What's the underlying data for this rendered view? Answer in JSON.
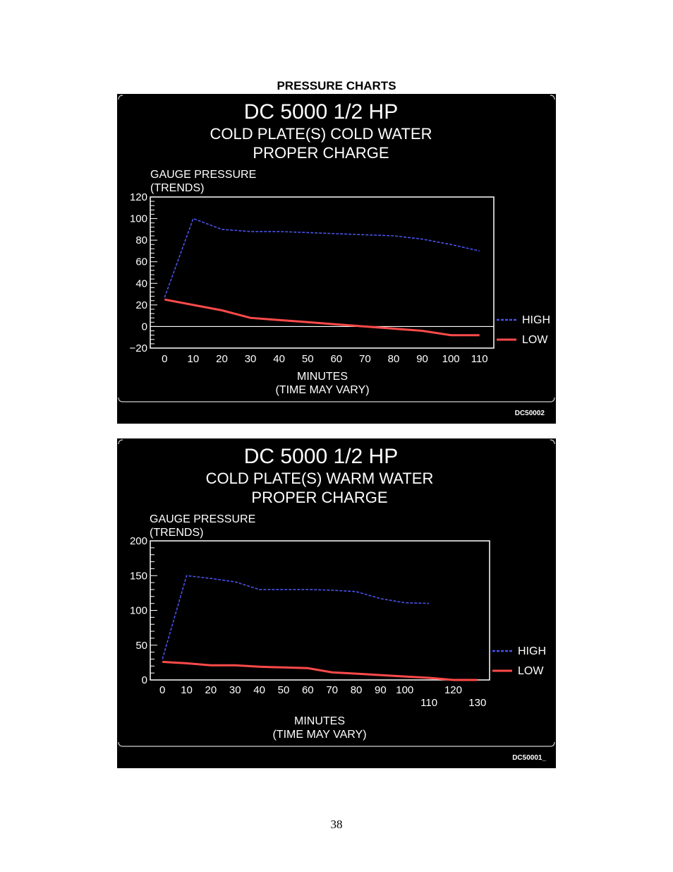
{
  "page": {
    "heading": "PRESSURE CHARTS",
    "number": "38"
  },
  "colors": {
    "high": "#4a52e8",
    "low": "#ff4a4a",
    "background": "#000000",
    "foreground": "#ffffff"
  },
  "chart_data": [
    {
      "type": "line",
      "title": "DC 5000 1/2 HP",
      "subtitle_1": "COLD PLATE(S) COLD WATER",
      "subtitle_2": "PROPER CHARGE",
      "ylabel_1": "GAUGE PRESSURE",
      "ylabel_2": "(TRENDS)",
      "xlabel_1": "MINUTES",
      "xlabel_2": "(TIME MAY VARY)",
      "code": "DC50002",
      "ylim": [
        -20,
        120
      ],
      "yticks": [
        120,
        100,
        80,
        60,
        40,
        20,
        0,
        -20
      ],
      "ytick_labels": [
        "120",
        "100",
        "80",
        "60",
        "40",
        "20",
        "0",
        "−20"
      ],
      "xlim": [
        -5,
        115
      ],
      "xticks": [
        0,
        10,
        20,
        30,
        40,
        50,
        60,
        70,
        80,
        90,
        100,
        110
      ],
      "xtick_labels": [
        "0",
        "10",
        "20",
        "30",
        "40",
        "50",
        "60",
        "70",
        "80",
        "90",
        "100",
        "110"
      ],
      "zero_line": true,
      "legend": "right",
      "series": [
        {
          "name": "HIGH",
          "style": "dashed",
          "x": [
            0,
            10,
            20,
            30,
            40,
            50,
            60,
            70,
            80,
            90,
            100,
            110
          ],
          "y": [
            27,
            100,
            90,
            88,
            88,
            87,
            86,
            85,
            84,
            81,
            76,
            70
          ]
        },
        {
          "name": "LOW",
          "style": "solid",
          "x": [
            0,
            10,
            20,
            30,
            40,
            50,
            60,
            70,
            80,
            90,
            100,
            110
          ],
          "y": [
            25,
            20,
            15,
            8,
            6,
            4,
            2,
            0,
            -2,
            -4,
            -8,
            -8
          ]
        }
      ]
    },
    {
      "type": "line",
      "title": "DC 5000 1/2 HP",
      "subtitle_1": "COLD PLATE(S) WARM WATER",
      "subtitle_2": "PROPER CHARGE",
      "ylabel_1": "GAUGE PRESSURE",
      "ylabel_2": "(TRENDS)",
      "xlabel_1": "MINUTES",
      "xlabel_2": "(TIME MAY VARY)",
      "code": "DC50001_",
      "ylim": [
        0,
        200
      ],
      "yticks": [
        200,
        150,
        100,
        50,
        0
      ],
      "ytick_labels": [
        "200",
        "150",
        "100",
        "50",
        "0"
      ],
      "xlim": [
        -5,
        135
      ],
      "xticks": [
        0,
        10,
        20,
        30,
        40,
        50,
        60,
        70,
        80,
        90,
        100,
        110,
        120,
        130
      ],
      "xtick_labels": [
        "0",
        "10",
        "20",
        "30",
        "40",
        "50",
        "60",
        "70",
        "80",
        "90",
        "100",
        "110",
        "120",
        "130"
      ],
      "xtick_low_row": [
        110,
        130
      ],
      "zero_line": false,
      "legend": "right",
      "series": [
        {
          "name": "HIGH",
          "style": "dashed",
          "x": [
            0,
            10,
            20,
            30,
            40,
            50,
            60,
            70,
            80,
            90,
            100,
            110
          ],
          "y": [
            30,
            150,
            146,
            141,
            130,
            130,
            130,
            129,
            127,
            117,
            111,
            110
          ]
        },
        {
          "name": "LOW",
          "style": "solid",
          "x": [
            0,
            10,
            20,
            30,
            40,
            50,
            60,
            70,
            80,
            90,
            100,
            110,
            120,
            130
          ],
          "y": [
            26,
            24,
            21,
            21,
            19,
            18,
            17,
            11,
            9,
            7,
            5,
            3,
            0,
            0
          ]
        }
      ]
    }
  ]
}
